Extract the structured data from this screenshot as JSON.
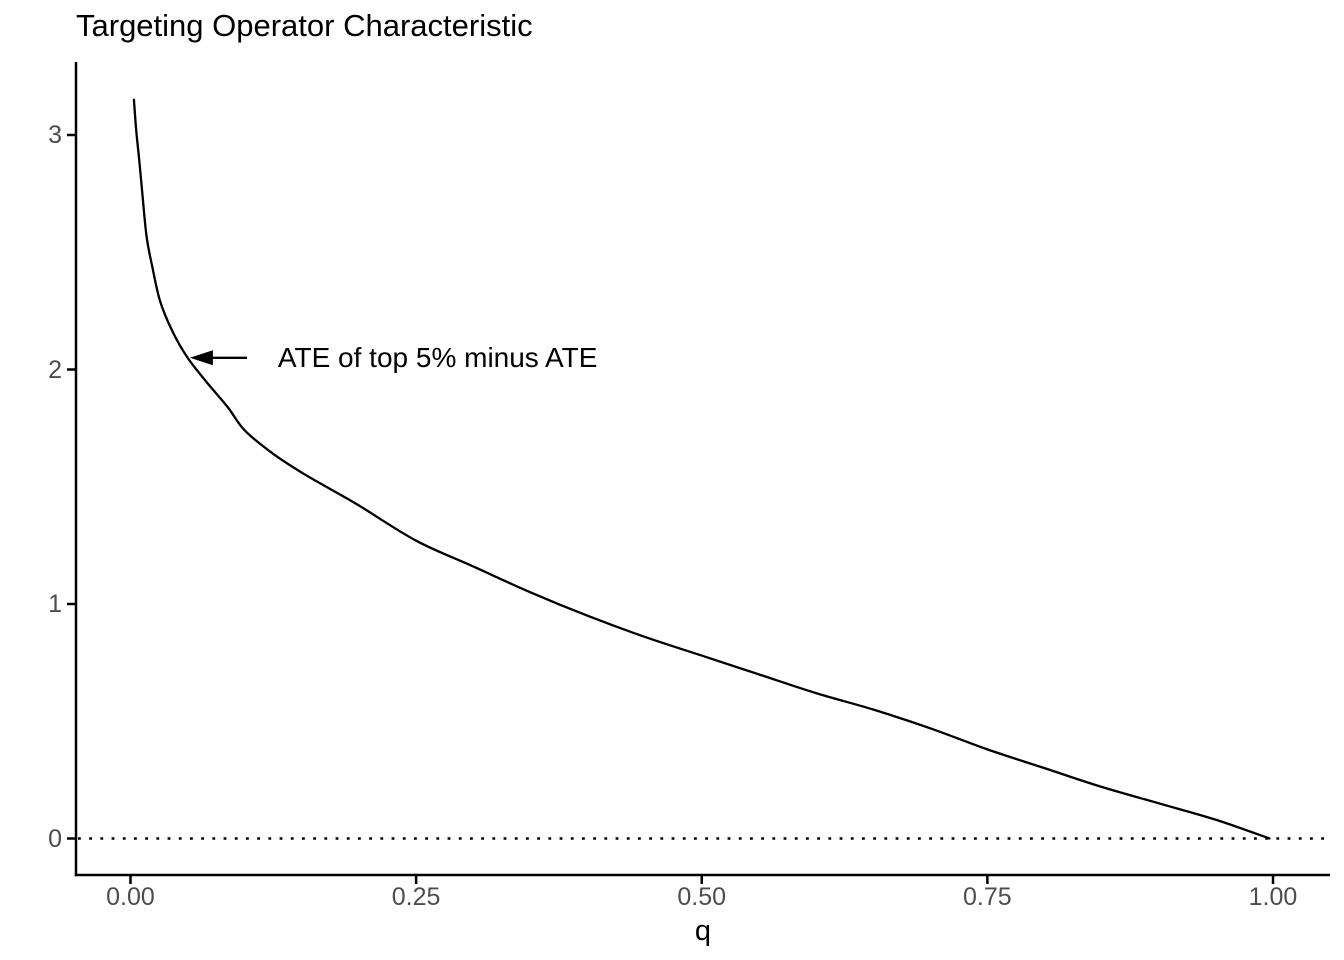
{
  "chart_data": {
    "type": "line",
    "title": "Targeting Operator Characteristic",
    "xlabel": "q",
    "ylabel": "",
    "xlim": [
      -0.048,
      1.05
    ],
    "ylim": [
      -0.16,
      3.32
    ],
    "grid": "off",
    "legend": "none",
    "x_ticks": [
      {
        "label": "0.00",
        "q": 0.0
      },
      {
        "label": "0.25",
        "q": 0.25
      },
      {
        "label": "0.50",
        "q": 0.5
      },
      {
        "label": "0.75",
        "q": 0.75
      },
      {
        "label": "1.00",
        "q": 1.0
      }
    ],
    "y_ticks": [
      {
        "label": "0",
        "v": 0
      },
      {
        "label": "1",
        "v": 1
      },
      {
        "label": "2",
        "v": 2
      },
      {
        "label": "3",
        "v": 3
      }
    ],
    "series": [
      {
        "name": "TOC curve",
        "color": "#000000",
        "points": [
          [
            0.003,
            3.15
          ],
          [
            0.005,
            3.02
          ],
          [
            0.0075,
            2.9
          ],
          [
            0.01,
            2.77
          ],
          [
            0.014,
            2.57
          ],
          [
            0.019,
            2.44
          ],
          [
            0.026,
            2.29
          ],
          [
            0.037,
            2.16
          ],
          [
            0.05,
            2.05
          ],
          [
            0.066,
            1.95
          ],
          [
            0.085,
            1.84
          ],
          [
            0.1,
            1.74
          ],
          [
            0.125,
            1.64
          ],
          [
            0.15,
            1.56
          ],
          [
            0.175,
            1.49
          ],
          [
            0.2,
            1.42
          ],
          [
            0.25,
            1.27
          ],
          [
            0.3,
            1.16
          ],
          [
            0.35,
            1.05
          ],
          [
            0.4,
            0.95
          ],
          [
            0.45,
            0.86
          ],
          [
            0.5,
            0.78
          ],
          [
            0.55,
            0.7
          ],
          [
            0.6,
            0.62
          ],
          [
            0.65,
            0.55
          ],
          [
            0.7,
            0.47
          ],
          [
            0.75,
            0.38
          ],
          [
            0.8,
            0.3
          ],
          [
            0.85,
            0.22
          ],
          [
            0.9,
            0.15
          ],
          [
            0.95,
            0.08
          ],
          [
            0.997,
            0.0
          ]
        ]
      }
    ],
    "reference_line": {
      "y": 0,
      "style": "dotted",
      "color": "#000000"
    },
    "annotation": {
      "text": "ATE of top 5% minus ATE",
      "arrow_tip": [
        0.052,
        2.05
      ],
      "arrow_tail_q": 0.102,
      "text_q": 0.129,
      "text_y": 2.05
    }
  },
  "colors": {
    "background": "#FFFFFF",
    "axis_line": "#000000",
    "axis_text": "#4D4D4D",
    "title_text": "#000000",
    "curve": "#000000"
  }
}
